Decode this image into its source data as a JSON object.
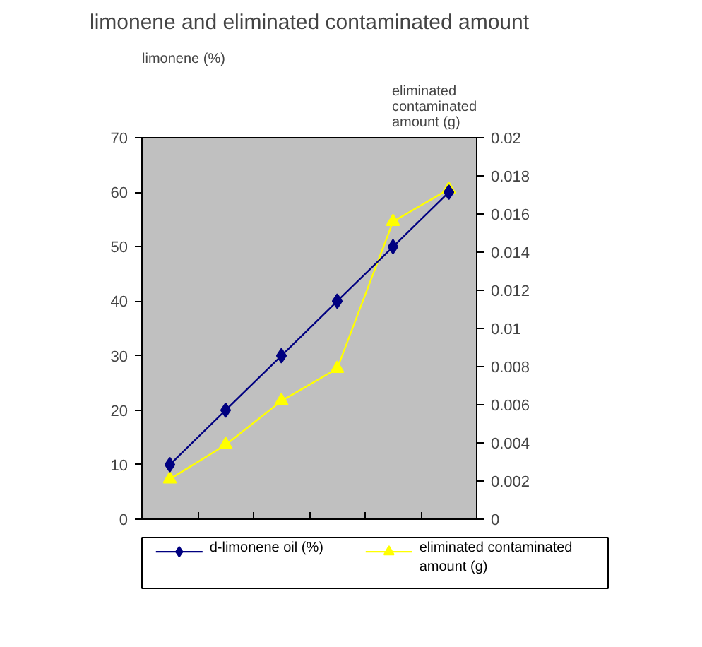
{
  "chart_data": {
    "type": "line",
    "title": "limonene and eliminated contaminated amount",
    "ylabel": "limonene (%)",
    "y2label": "eliminated contaminated amount (g)",
    "categories": [
      null,
      null,
      null,
      null,
      null,
      null
    ],
    "ylim": [
      0,
      70
    ],
    "yticks": [
      0,
      10,
      20,
      30,
      40,
      50,
      60,
      70
    ],
    "y2lim": [
      0,
      0.02
    ],
    "y2ticks": [
      0,
      0.002,
      0.004,
      0.006,
      0.008,
      0.01,
      0.012,
      0.014,
      0.016,
      0.018,
      0.02
    ],
    "grid": false,
    "legend": "bottom",
    "series": [
      {
        "name": "d-limonene oil (%)",
        "color": "#000080",
        "marker": "diamond",
        "values": [
          10,
          20,
          30,
          40,
          50,
          60
        ]
      },
      {
        "name": "eliminated contaminated amount (g)",
        "color": "#ffff00",
        "marker": "triangle",
        "axis": "y2",
        "values": [
          0.0021,
          0.0039,
          0.0062,
          0.0079,
          0.0156,
          0.0173
        ]
      }
    ]
  }
}
